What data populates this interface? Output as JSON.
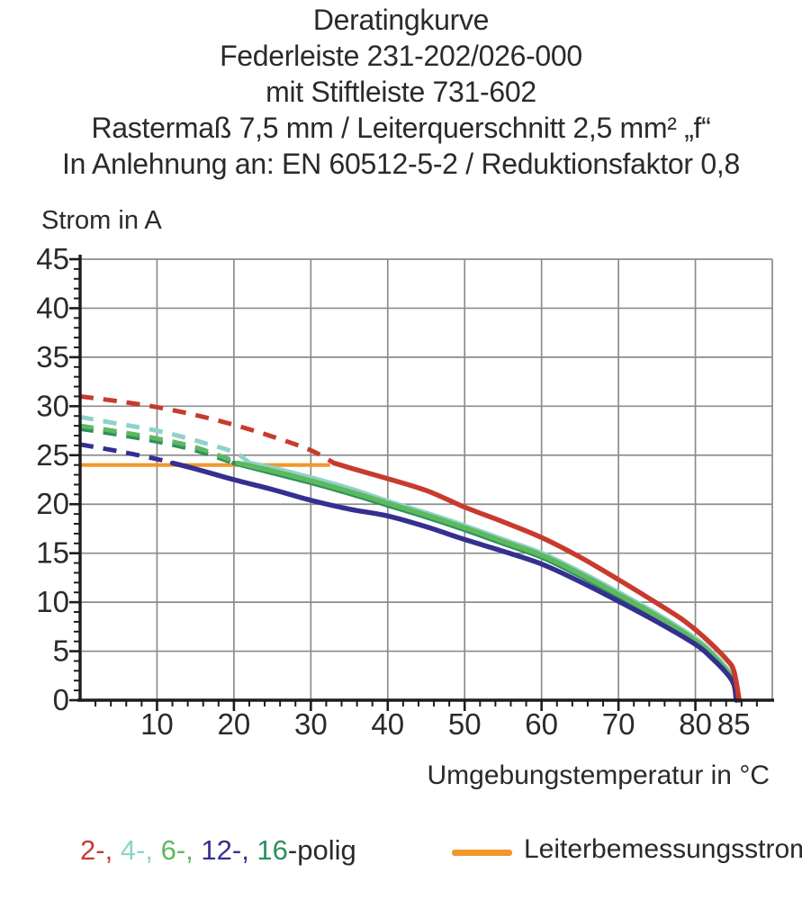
{
  "title": {
    "lines": [
      "Deratingkurve",
      "Federleiste 231-202/026-000",
      "mit Stiftleiste 731-602",
      "Rastermaß 7,5 mm / Leiterquerschnitt 2,5 mm² „f“",
      "In Anlehnung an: EN 60512-5-2 / Reduktionsfaktor 0,8"
    ]
  },
  "chart": {
    "y_axis_label": "Strom in A",
    "x_axis_label": "Umgebungstemperatur in °C"
  },
  "colors": {
    "grid": "#8c8c8c",
    "axis": "#1c1c1c",
    "text": "#2a2a2a",
    "rated_orange": "#f0982d"
  },
  "legend": {
    "pole_parts": [
      {
        "text": "2-, ",
        "color": "#c93a2e"
      },
      {
        "text": "4-, ",
        "color": "#8fd2cb"
      },
      {
        "text": "6-, ",
        "color": "#5eb95e"
      },
      {
        "text": "12-, ",
        "color": "#34308f"
      },
      {
        "text": "16",
        "color": "#2e8f5e"
      },
      {
        "text": "-polig",
        "color": "#2a2a2a"
      }
    ],
    "rated_label": "Leiterbemessungsstrom",
    "rated_color": "#f0982d"
  },
  "chart_data": {
    "type": "line",
    "title": "Deratingkurve",
    "xlabel": "Umgebungstemperatur in °C",
    "ylabel": "Strom in A",
    "xlim": [
      0,
      90
    ],
    "ylim": [
      0,
      45
    ],
    "x_ticks": [
      10,
      20,
      30,
      40,
      50,
      60,
      70,
      80,
      85
    ],
    "y_ticks": [
      0,
      5,
      10,
      15,
      20,
      25,
      30,
      35,
      40,
      45
    ],
    "grid": true,
    "legend_position": "bottom",
    "rated_line": {
      "name": "Leiterbemessungsstrom",
      "y": 24,
      "x_start": 0,
      "x_end": 32.5,
      "color": "#f0982d"
    },
    "note": "curves dashed above rated current (24 A), solid below; all fall to 0 A at ~85.5 °C",
    "series": [
      {
        "name": "2-polig",
        "color": "#c93a2e",
        "dash_until_x": 33,
        "points": [
          [
            0,
            31.0
          ],
          [
            5,
            30.5
          ],
          [
            10,
            29.9
          ],
          [
            15,
            29.1
          ],
          [
            20,
            28.1
          ],
          [
            25,
            26.9
          ],
          [
            30,
            25.5
          ],
          [
            33,
            24.2
          ],
          [
            36,
            23.5
          ],
          [
            40,
            22.6
          ],
          [
            45,
            21.4
          ],
          [
            50,
            19.7
          ],
          [
            55,
            18.2
          ],
          [
            60,
            16.6
          ],
          [
            65,
            14.6
          ],
          [
            70,
            12.3
          ],
          [
            75,
            9.9
          ],
          [
            78,
            8.4
          ],
          [
            80,
            7.2
          ],
          [
            82,
            5.8
          ],
          [
            84,
            4.2
          ],
          [
            85,
            3.0
          ],
          [
            85.7,
            0
          ]
        ]
      },
      {
        "name": "4-polig",
        "color": "#8fd2cb",
        "dash_until_x": 22,
        "points": [
          [
            0,
            28.9
          ],
          [
            5,
            28.2
          ],
          [
            10,
            27.5
          ],
          [
            15,
            26.5
          ],
          [
            20,
            25.3
          ],
          [
            22,
            24.2
          ],
          [
            25,
            23.7
          ],
          [
            30,
            22.7
          ],
          [
            35,
            21.6
          ],
          [
            40,
            20.3
          ],
          [
            45,
            19.1
          ],
          [
            50,
            17.8
          ],
          [
            55,
            16.4
          ],
          [
            60,
            15.0
          ],
          [
            65,
            13.1
          ],
          [
            70,
            11.0
          ],
          [
            75,
            8.8
          ],
          [
            80,
            6.3
          ],
          [
            82,
            5.0
          ],
          [
            84,
            3.3
          ],
          [
            85,
            2.1
          ],
          [
            85.5,
            0
          ]
        ]
      },
      {
        "name": "6-polig",
        "color": "#5eb95e",
        "dash_until_x": 20.5,
        "points": [
          [
            0,
            28.0
          ],
          [
            5,
            27.4
          ],
          [
            10,
            26.7
          ],
          [
            15,
            25.8
          ],
          [
            20,
            24.4
          ],
          [
            20.5,
            24.2
          ],
          [
            25,
            23.4
          ],
          [
            30,
            22.4
          ],
          [
            35,
            21.3
          ],
          [
            40,
            20.1
          ],
          [
            45,
            18.9
          ],
          [
            50,
            17.6
          ],
          [
            55,
            16.2
          ],
          [
            60,
            14.8
          ],
          [
            65,
            12.9
          ],
          [
            70,
            10.8
          ],
          [
            75,
            8.6
          ],
          [
            80,
            6.1
          ],
          [
            82,
            4.8
          ],
          [
            84,
            3.1
          ],
          [
            85,
            1.9
          ],
          [
            85.4,
            0
          ]
        ]
      },
      {
        "name": "12-polig",
        "color": "#34308f",
        "dash_until_x": 12,
        "points": [
          [
            0,
            26.1
          ],
          [
            5,
            25.4
          ],
          [
            10,
            24.6
          ],
          [
            12,
            24.2
          ],
          [
            15,
            23.6
          ],
          [
            20,
            22.5
          ],
          [
            25,
            21.5
          ],
          [
            30,
            20.4
          ],
          [
            35,
            19.5
          ],
          [
            40,
            18.8
          ],
          [
            45,
            17.7
          ],
          [
            50,
            16.4
          ],
          [
            55,
            15.2
          ],
          [
            60,
            13.9
          ],
          [
            65,
            12.1
          ],
          [
            70,
            10.1
          ],
          [
            75,
            8.0
          ],
          [
            80,
            5.7
          ],
          [
            82,
            4.4
          ],
          [
            84,
            2.8
          ],
          [
            85,
            1.6
          ],
          [
            85.3,
            0
          ]
        ]
      },
      {
        "name": "16-polig",
        "color": "#2e8f5e",
        "dash_until_x": 20,
        "points": [
          [
            0,
            27.7
          ],
          [
            5,
            27.1
          ],
          [
            10,
            26.4
          ],
          [
            15,
            25.5
          ],
          [
            20,
            24.2
          ],
          [
            25,
            23.2
          ],
          [
            30,
            22.2
          ],
          [
            35,
            21.1
          ],
          [
            40,
            19.9
          ],
          [
            45,
            18.7
          ],
          [
            50,
            17.4
          ],
          [
            55,
            16.0
          ],
          [
            60,
            14.6
          ],
          [
            65,
            12.7
          ],
          [
            70,
            10.6
          ],
          [
            75,
            8.4
          ],
          [
            80,
            5.9
          ],
          [
            82,
            4.6
          ],
          [
            84,
            3.0
          ],
          [
            85,
            1.8
          ],
          [
            85.35,
            0
          ]
        ]
      }
    ]
  }
}
